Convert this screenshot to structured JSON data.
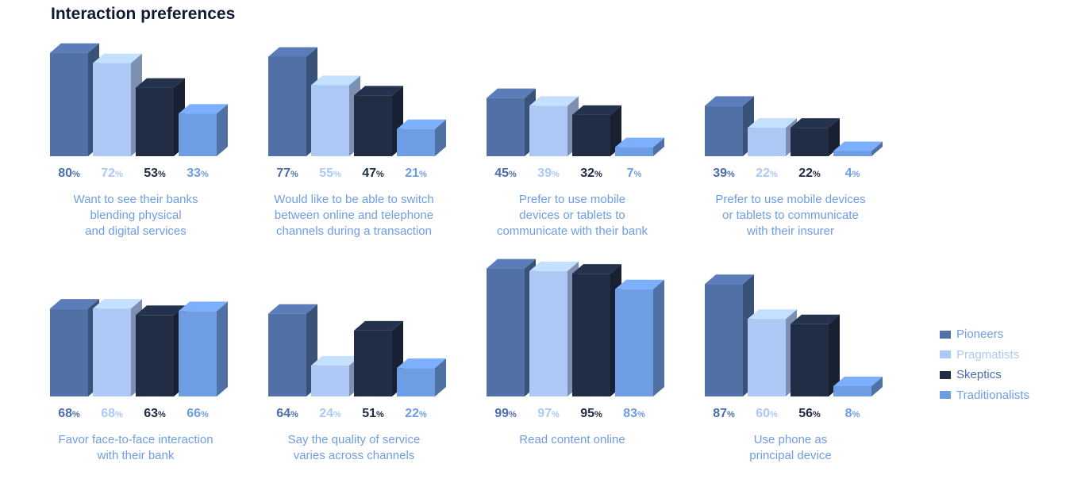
{
  "title": "Interaction preferences",
  "colors": [
    "#5070a6",
    "#aec8f6",
    "#212d45",
    "#6f9de4"
  ],
  "label_colors": [
    "#4d6ea8",
    "#aec8f6",
    "#212d45",
    "#6f9de4"
  ],
  "legend": [
    "Pioneers",
    "Pragmatists",
    "Skeptics",
    "Traditionalists"
  ],
  "chart_data": [
    {
      "type": "bar",
      "caption": [
        "Want to see their banks",
        "blending physical",
        "and digital services"
      ],
      "categories": [
        "Pioneers",
        "Pragmatists",
        "Skeptics",
        "Traditionalists"
      ],
      "values": [
        80,
        72,
        53,
        33
      ],
      "unit": "%",
      "ylim": [
        0,
        100
      ]
    },
    {
      "type": "bar",
      "caption": [
        "Would like to be able to switch",
        "between online and telephone",
        "channels during a transaction"
      ],
      "categories": [
        "Pioneers",
        "Pragmatists",
        "Skeptics",
        "Traditionalists"
      ],
      "values": [
        77,
        55,
        47,
        21
      ],
      "unit": "%",
      "ylim": [
        0,
        100
      ]
    },
    {
      "type": "bar",
      "caption": [
        "Prefer to use mobile",
        "devices or tablets to",
        "communicate with their bank"
      ],
      "categories": [
        "Pioneers",
        "Pragmatists",
        "Skeptics",
        "Traditionalists"
      ],
      "values": [
        45,
        39,
        32,
        7
      ],
      "unit": "%",
      "ylim": [
        0,
        100
      ]
    },
    {
      "type": "bar",
      "caption": [
        "Prefer to use mobile devices",
        "or tablets to communicate",
        "with their insurer"
      ],
      "categories": [
        "Pioneers",
        "Pragmatists",
        "Skeptics",
        "Traditionalists"
      ],
      "values": [
        39,
        22,
        22,
        4
      ],
      "unit": "%",
      "ylim": [
        0,
        100
      ]
    },
    {
      "type": "bar",
      "caption": [
        "Favor face-to-face interaction",
        "with their bank"
      ],
      "categories": [
        "Pioneers",
        "Pragmatists",
        "Skeptics",
        "Traditionalists"
      ],
      "values": [
        68,
        68,
        63,
        66
      ],
      "unit": "%",
      "ylim": [
        0,
        100
      ]
    },
    {
      "type": "bar",
      "caption": [
        "Say the quality of service",
        "varies across channels"
      ],
      "categories": [
        "Pioneers",
        "Pragmatists",
        "Skeptics",
        "Traditionalists"
      ],
      "values": [
        64,
        24,
        51,
        22
      ],
      "unit": "%",
      "ylim": [
        0,
        100
      ]
    },
    {
      "type": "bar",
      "caption": [
        "Read content online"
      ],
      "categories": [
        "Pioneers",
        "Pragmatists",
        "Skeptics",
        "Traditionalists"
      ],
      "values": [
        99,
        97,
        95,
        83
      ],
      "unit": "%",
      "ylim": [
        0,
        100
      ]
    },
    {
      "type": "bar",
      "caption": [
        "Use phone as",
        "principal device"
      ],
      "categories": [
        "Pioneers",
        "Pragmatists",
        "Skeptics",
        "Traditionalists"
      ],
      "values": [
        87,
        60,
        56,
        8
      ],
      "unit": "%",
      "ylim": [
        0,
        100
      ]
    }
  ]
}
